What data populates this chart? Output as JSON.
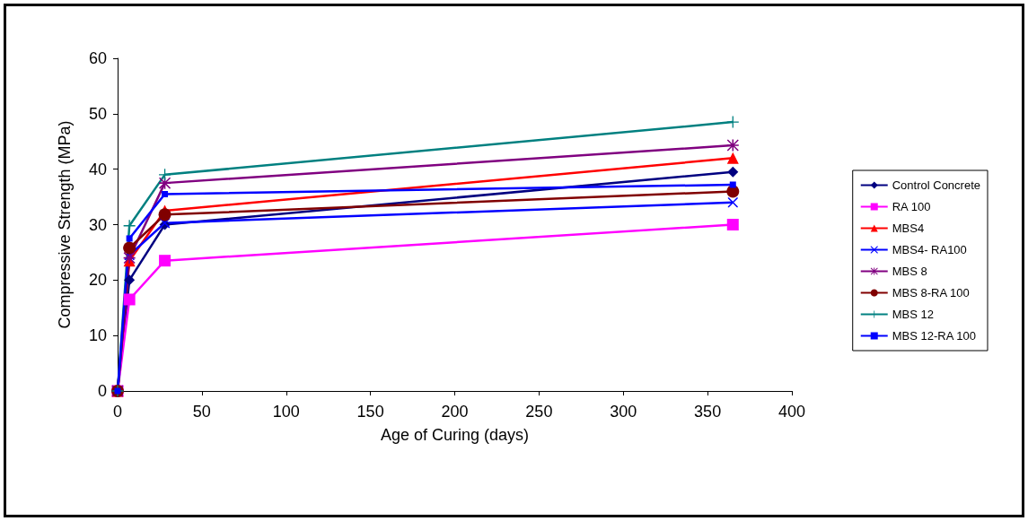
{
  "chart_data": {
    "type": "line",
    "xlabel": "Age of Curing (days)",
    "ylabel": "Compressive Strength (MPa)",
    "x": [
      0,
      7,
      28,
      365
    ],
    "xlim": [
      0,
      400
    ],
    "xticks": [
      0,
      50,
      100,
      150,
      200,
      250,
      300,
      350,
      400
    ],
    "ylim": [
      0,
      60
    ],
    "yticks": [
      0,
      10,
      20,
      30,
      40,
      50,
      60
    ],
    "grid": false,
    "legend": "right",
    "series": [
      {
        "name": "Control Concrete",
        "color": "#000080",
        "marker": "diamond",
        "values": [
          0,
          20,
          30,
          39.5
        ]
      },
      {
        "name": "RA 100",
        "color": "#ff00ff",
        "marker": "square",
        "values": [
          0,
          16.5,
          23.5,
          30
        ]
      },
      {
        "name": "MBS4",
        "color": "#ff0000",
        "marker": "triangle",
        "values": [
          0,
          23.5,
          32.5,
          42
        ]
      },
      {
        "name": "MBS4- RA100",
        "color": "#0000ff",
        "marker": "cross",
        "values": [
          0,
          24.5,
          30.3,
          34
        ]
      },
      {
        "name": "MBS 8",
        "color": "#800080",
        "marker": "star",
        "values": [
          0,
          24,
          37.5,
          44.3
        ]
      },
      {
        "name": "MBS 8-RA 100",
        "color": "#800000",
        "marker": "circle",
        "values": [
          0,
          25.8,
          31.8,
          36
        ]
      },
      {
        "name": "MBS 12",
        "color": "#008080",
        "marker": "plus",
        "values": [
          0,
          29.8,
          39,
          48.5
        ]
      },
      {
        "name": "MBS 12-RA 100",
        "color": "#0000ff",
        "marker": "rect",
        "values": [
          0,
          27.5,
          35.5,
          37.2
        ]
      }
    ]
  }
}
